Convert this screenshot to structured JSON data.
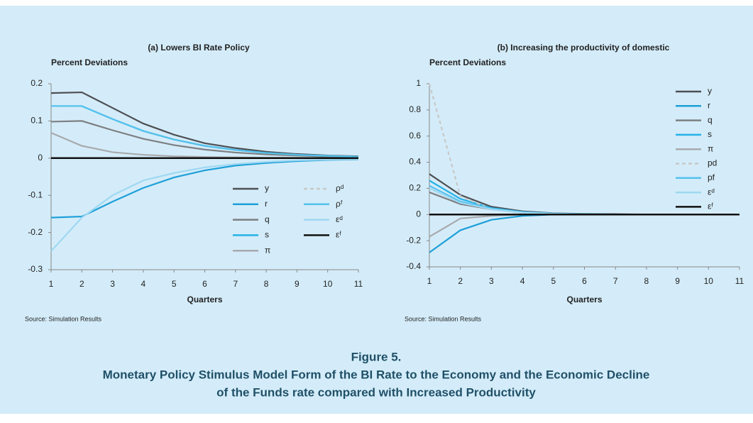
{
  "chart_data": [
    {
      "type": "line",
      "title": "(a) Lowers BI Rate Policy",
      "ylabel": "Percent Deviations",
      "xlabel": "Quarters",
      "source": "Source: Simulation Results",
      "x": [
        1,
        2,
        3,
        4,
        5,
        6,
        7,
        8,
        9,
        10,
        11
      ],
      "xlim": [
        1,
        11
      ],
      "xticks": [
        1,
        2,
        3,
        4,
        5,
        6,
        7,
        8,
        9,
        10,
        11
      ],
      "ylim": [
        -0.3,
        0.2
      ],
      "yticks": [
        -0.3,
        -0.2,
        -0.1,
        0,
        0.1,
        0.2
      ],
      "legend": "lower right",
      "series": [
        {
          "name": "y",
          "color": "#4d4f53",
          "values": [
            0.175,
            0.177,
            0.135,
            0.093,
            0.063,
            0.04,
            0.027,
            0.017,
            0.011,
            0.007,
            0.005
          ]
        },
        {
          "name": "r",
          "color": "#1e9fd8",
          "values": [
            -0.16,
            -0.157,
            -0.117,
            -0.08,
            -0.052,
            -0.033,
            -0.02,
            -0.013,
            -0.008,
            -0.005,
            -0.003
          ]
        },
        {
          "name": "q",
          "color": "#7d7f82",
          "values": [
            0.098,
            0.1,
            0.075,
            0.052,
            0.035,
            0.023,
            0.015,
            0.01,
            0.007,
            0.004,
            0.003
          ]
        },
        {
          "name": "s",
          "color": "#25b2e8",
          "values": [
            0.14,
            0.14,
            0.105,
            0.073,
            0.05,
            0.033,
            0.022,
            0.014,
            0.009,
            0.006,
            0.004
          ]
        },
        {
          "name": "π",
          "color": "#a8aaad",
          "values": [
            0.068,
            0.033,
            0.016,
            0.009,
            0.005,
            0.003,
            0.002,
            0.001,
            0.001,
            0,
            0
          ]
        },
        {
          "name": "ρᵈ",
          "color": "#c8c8c8",
          "dash": "dashed",
          "values": [
            0,
            0,
            0,
            0,
            0,
            0,
            0,
            0,
            0,
            0,
            0
          ]
        },
        {
          "name": "ρᶠ",
          "color": "#55c1ec",
          "values": [
            0.14,
            0.14,
            0.105,
            0.073,
            0.05,
            0.033,
            0.022,
            0.014,
            0.009,
            0.006,
            0.004
          ]
        },
        {
          "name": "εᵈ",
          "color": "#9fd8f2",
          "values": [
            -0.25,
            -0.16,
            -0.1,
            -0.06,
            -0.04,
            -0.025,
            -0.016,
            -0.01,
            -0.006,
            -0.004,
            -0.002
          ]
        },
        {
          "name": "εᶠ",
          "color": "#111111",
          "values": [
            0,
            0,
            0,
            0,
            0,
            0,
            0,
            0,
            0,
            0,
            0
          ]
        }
      ]
    },
    {
      "type": "line",
      "title": "(b) Increasing the productivity of domestic",
      "ylabel": "Percent Deviations",
      "xlabel": "Quarters",
      "source": "Source: Simulation Results",
      "x": [
        1,
        2,
        3,
        4,
        5,
        6,
        7,
        8,
        9,
        10,
        11
      ],
      "xlim": [
        1,
        11
      ],
      "xticks": [
        1,
        2,
        3,
        4,
        5,
        6,
        7,
        8,
        9,
        10,
        11
      ],
      "ylim": [
        -0.4,
        1
      ],
      "yticks": [
        -0.4,
        -0.2,
        0,
        0.2,
        0.4,
        0.6,
        0.8,
        1
      ],
      "legend": "upper right",
      "series": [
        {
          "name": "y",
          "color": "#4d4f53",
          "values": [
            0.31,
            0.15,
            0.06,
            0.025,
            0.01,
            0.005,
            0.003,
            0.001,
            0,
            0,
            0
          ]
        },
        {
          "name": "r",
          "color": "#1e9fd8",
          "values": [
            -0.29,
            -0.12,
            -0.04,
            -0.01,
            0,
            0,
            0,
            0,
            0,
            0,
            0
          ]
        },
        {
          "name": "q",
          "color": "#7d7f82",
          "values": [
            0.17,
            0.08,
            0.04,
            0.015,
            0.005,
            0.002,
            0.001,
            0,
            0,
            0,
            0
          ]
        },
        {
          "name": "s",
          "color": "#25b2e8",
          "values": [
            0.26,
            0.12,
            0.05,
            0.02,
            0.008,
            0.003,
            0.001,
            0,
            0,
            0,
            0
          ]
        },
        {
          "name": "π",
          "color": "#a8aaad",
          "values": [
            -0.17,
            -0.03,
            -0.01,
            0,
            0,
            0,
            0,
            0,
            0,
            0,
            0
          ]
        },
        {
          "name": "pd",
          "color": "#c8c8c8",
          "dash": "dashed",
          "values": [
            1,
            0.14,
            0.04,
            0.01,
            0.003,
            0.001,
            0,
            0,
            0,
            0,
            0
          ]
        },
        {
          "name": "pf",
          "color": "#55c1ec",
          "values": [
            0.22,
            0.1,
            0.045,
            0.018,
            0.007,
            0.002,
            0.001,
            0,
            0,
            0,
            0
          ]
        },
        {
          "name": "εᵈ",
          "color": "#9fd8f2",
          "values": [
            0.2,
            0.09,
            0.04,
            0.015,
            0.005,
            0.002,
            0.001,
            0,
            0,
            0,
            0
          ]
        },
        {
          "name": "εᶠ",
          "color": "#111111",
          "values": [
            0,
            0,
            0,
            0,
            0,
            0,
            0,
            0,
            0,
            0,
            0
          ]
        }
      ]
    }
  ],
  "figure": {
    "label": "Figure 5.",
    "caption": [
      "Monetary Policy Stimulus Model Form of the BI Rate to the Economy and the Economic Decline",
      "of the Funds rate compared with Increased Productivity"
    ]
  }
}
